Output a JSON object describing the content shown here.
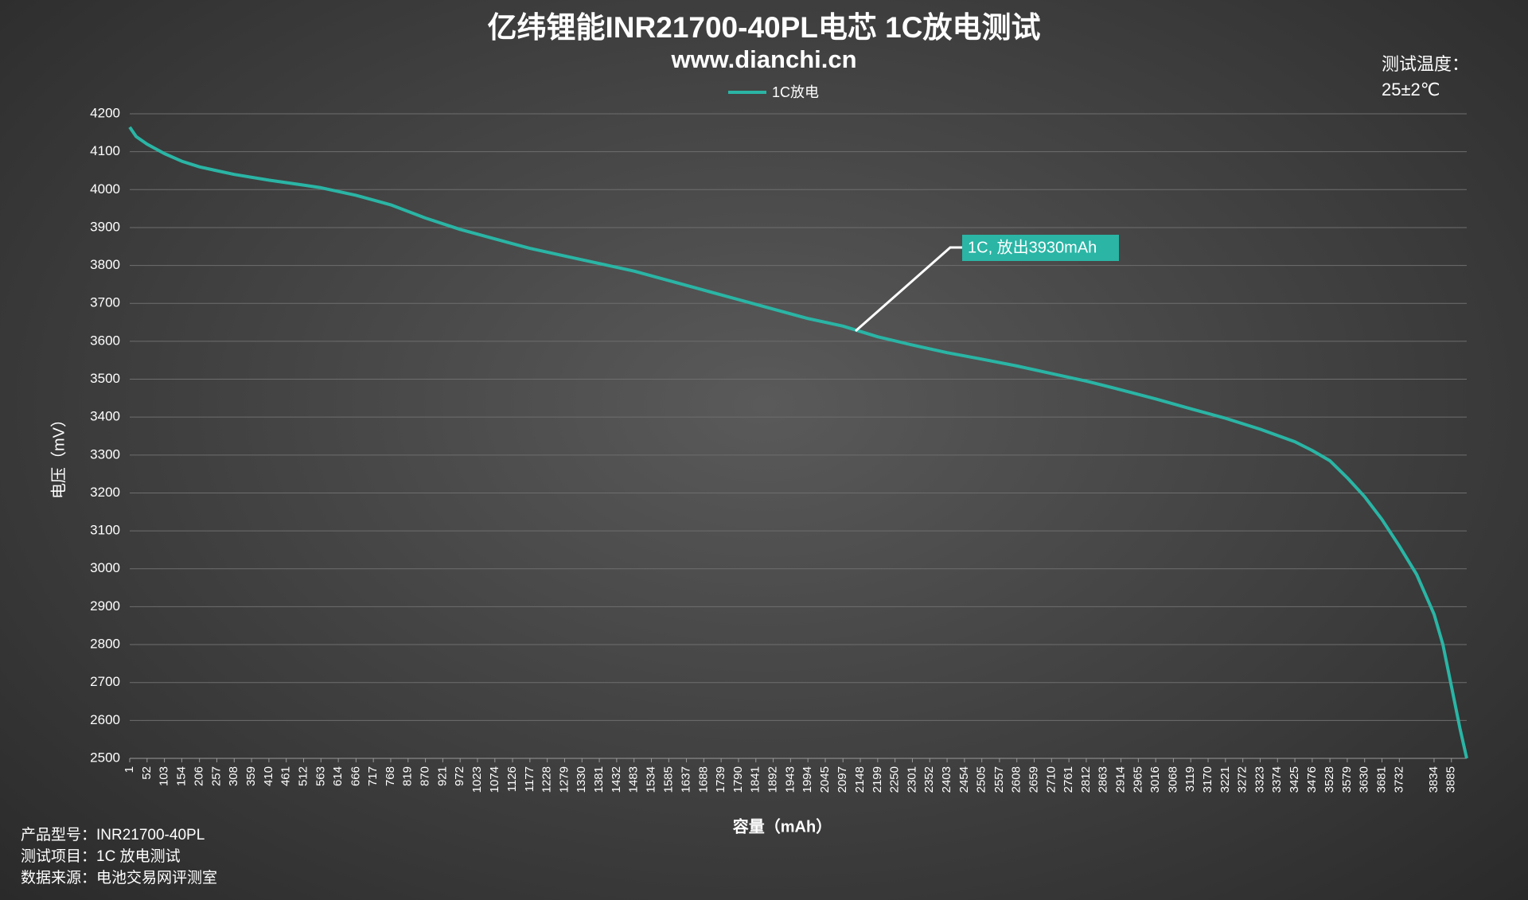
{
  "chart_data": {
    "type": "line",
    "title": "亿纬锂能INR21700-40PL电芯 1C放电测试",
    "subtitle": "www.dianchi.cn",
    "temperature_label": "测试温度：",
    "temperature_value": "25±2℃",
    "y_label": "电压（mV）",
    "x_label": "容量（mAh）",
    "annotation": "1C, 放出3930mAh",
    "notes": [
      "产品型号：INR21700-40PL",
      "测试项目：1C 放电测试",
      "数据来源：电池交易网评测室"
    ],
    "legend": "top",
    "grid": true,
    "xlim": [
      1,
      3930
    ],
    "xticks": [
      1,
      52,
      103,
      154,
      206,
      257,
      308,
      359,
      410,
      461,
      512,
      563,
      614,
      666,
      717,
      768,
      819,
      870,
      921,
      972,
      1023,
      1074,
      1126,
      1177,
      1228,
      1279,
      1330,
      1381,
      1432,
      1483,
      1534,
      1585,
      1637,
      1688,
      1739,
      1790,
      1841,
      1892,
      1943,
      1994,
      2045,
      2097,
      2148,
      2199,
      2250,
      2301,
      2352,
      2403,
      2454,
      2505,
      2557,
      2608,
      2659,
      2710,
      2761,
      2812,
      2863,
      2914,
      2965,
      3016,
      3068,
      3119,
      3170,
      3221,
      3272,
      3323,
      3374,
      3425,
      3476,
      3528,
      3579,
      3630,
      3681,
      3732,
      3834,
      3885
    ],
    "ylim": [
      2500,
      4200
    ],
    "yticks": [
      2500,
      2600,
      2700,
      2800,
      2900,
      3000,
      3100,
      3200,
      3300,
      3400,
      3500,
      3600,
      3700,
      3800,
      3900,
      4000,
      4100,
      4200
    ],
    "x": [
      1,
      20,
      52,
      103,
      154,
      206,
      257,
      308,
      410,
      512,
      563,
      666,
      768,
      870,
      972,
      1074,
      1177,
      1279,
      1381,
      1483,
      1585,
      1688,
      1790,
      1892,
      1994,
      2097,
      2199,
      2301,
      2403,
      2505,
      2608,
      2710,
      2812,
      2914,
      3016,
      3119,
      3221,
      3323,
      3425,
      3476,
      3528,
      3579,
      3630,
      3681,
      3732,
      3783,
      3834,
      3860,
      3885,
      3910,
      3930
    ],
    "series": [
      {
        "name": "1C放电",
        "color": "#2ab5a5",
        "values": [
          4165,
          4140,
          4120,
          4095,
          4075,
          4060,
          4050,
          4040,
          4025,
          4012,
          4005,
          3985,
          3960,
          3925,
          3895,
          3870,
          3845,
          3825,
          3805,
          3785,
          3760,
          3735,
          3710,
          3685,
          3660,
          3640,
          3612,
          3590,
          3570,
          3553,
          3535,
          3515,
          3495,
          3472,
          3448,
          3422,
          3397,
          3368,
          3335,
          3312,
          3285,
          3240,
          3190,
          3130,
          3060,
          2985,
          2880,
          2800,
          2690,
          2580,
          2500
        ]
      }
    ]
  }
}
